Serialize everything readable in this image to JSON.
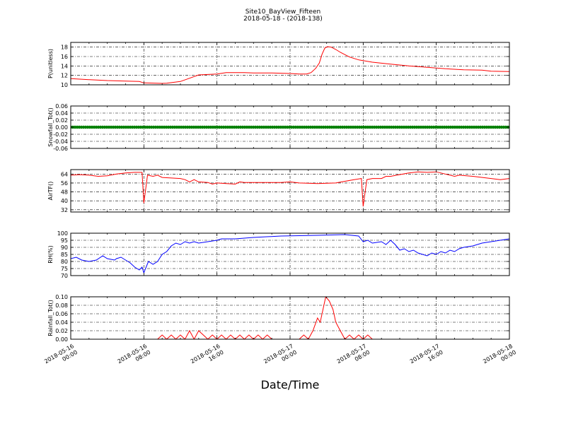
{
  "figure": {
    "title_line1": "Site10_BayView_Fifteen",
    "title_line2": "2018-05-18 - (2018-138)",
    "xlabel": "Date/Time",
    "x_ticks": [
      {
        "line1": "2018-05-16",
        "line2": "00:00"
      },
      {
        "line1": "2018-05-16",
        "line2": "08:00"
      },
      {
        "line1": "2018-05-16",
        "line2": "16:00"
      },
      {
        "line1": "2018-05-17",
        "line2": "00:00"
      },
      {
        "line1": "2018-05-17",
        "line2": "08:00"
      },
      {
        "line1": "2018-05-17",
        "line2": "16:00"
      },
      {
        "line1": "2018-05-18",
        "line2": "00:00"
      }
    ]
  },
  "chart_data": [
    {
      "type": "line",
      "ylabel": "P(unitless)",
      "ylim": [
        10,
        19
      ],
      "yticks": [
        10,
        12,
        14,
        16,
        18
      ],
      "grid": true,
      "series": [
        {
          "color": "#ff0000",
          "points": [
            [
              0,
              11.3
            ],
            [
              2,
              11.1
            ],
            [
              4,
              10.9
            ],
            [
              6,
              10.8
            ],
            [
              7.5,
              10.7
            ],
            [
              8,
              10.4
            ],
            [
              10,
              10.3
            ],
            [
              10.5,
              10.35
            ],
            [
              12,
              10.7
            ],
            [
              13,
              11.4
            ],
            [
              14,
              12.1
            ],
            [
              16,
              12.3
            ],
            [
              17,
              12.6
            ],
            [
              19,
              12.6
            ],
            [
              20,
              12.5
            ],
            [
              22,
              12.5
            ],
            [
              24,
              12.4
            ],
            [
              25,
              12.3
            ],
            [
              25.8,
              12.3
            ],
            [
              26.3,
              12.6
            ],
            [
              26.8,
              13.5
            ],
            [
              27.2,
              14.6
            ],
            [
              27.5,
              16.5
            ],
            [
              27.8,
              17.8
            ],
            [
              28.1,
              18.1
            ],
            [
              28.5,
              18
            ],
            [
              29,
              17.5
            ],
            [
              29.5,
              16.9
            ],
            [
              30.5,
              15.9
            ],
            [
              31.5,
              15.3
            ],
            [
              33,
              14.8
            ],
            [
              35,
              14.4
            ],
            [
              37,
              14
            ],
            [
              39,
              13.7
            ],
            [
              41,
              13.4
            ],
            [
              43,
              13.2
            ],
            [
              45,
              13.1
            ],
            [
              46,
              12.9
            ],
            [
              48,
              12.8
            ]
          ]
        }
      ]
    },
    {
      "type": "line",
      "ylabel": "Snowfall_Tot()",
      "ylim": [
        -0.06,
        0.06
      ],
      "yticks": [
        -0.06,
        -0.04,
        -0.02,
        0.0,
        0.02,
        0.04,
        0.06
      ],
      "grid": true,
      "series": [
        {
          "color": "#008000",
          "markers": true,
          "points": [
            [
              0,
              0
            ],
            [
              48,
              0
            ]
          ]
        }
      ]
    },
    {
      "type": "line",
      "ylabel": "AirTF()",
      "ylim": [
        30,
        68
      ],
      "yticks": [
        32,
        40,
        48,
        56,
        64
      ],
      "grid": true,
      "series": [
        {
          "color": "#ff0000",
          "points": [
            [
              0,
              63
            ],
            [
              1,
              63.5
            ],
            [
              2,
              63
            ],
            [
              3,
              62
            ],
            [
              4,
              62.5
            ],
            [
              5,
              64
            ],
            [
              6,
              65
            ],
            [
              7,
              65.5
            ],
            [
              7.8,
              65.5
            ],
            [
              8,
              38
            ],
            [
              8.4,
              63
            ],
            [
              9,
              62
            ],
            [
              9.5,
              63
            ],
            [
              10,
              61
            ],
            [
              12,
              60
            ],
            [
              12.5,
              59
            ],
            [
              13,
              57
            ],
            [
              13.5,
              59
            ],
            [
              14,
              57
            ],
            [
              15,
              56.5
            ],
            [
              15.5,
              55
            ],
            [
              16,
              56
            ],
            [
              17,
              55.5
            ],
            [
              18,
              55
            ],
            [
              18.5,
              57
            ],
            [
              19,
              56.5
            ],
            [
              21,
              56.5
            ],
            [
              23,
              56.5
            ],
            [
              24,
              57
            ],
            [
              25,
              56
            ],
            [
              27,
              55.5
            ],
            [
              29,
              56
            ],
            [
              31,
              59
            ],
            [
              31.8,
              60
            ],
            [
              32,
              35
            ],
            [
              32.4,
              59
            ],
            [
              33,
              60
            ],
            [
              34,
              60
            ],
            [
              34.5,
              62
            ],
            [
              35,
              62
            ],
            [
              36,
              63.5
            ],
            [
              37,
              65
            ],
            [
              38,
              66
            ],
            [
              39,
              65.5
            ],
            [
              40,
              66
            ],
            [
              41,
              64
            ],
            [
              42,
              62
            ],
            [
              42.5,
              63
            ],
            [
              44,
              62
            ],
            [
              46,
              60
            ],
            [
              47,
              59
            ],
            [
              48,
              60
            ]
          ]
        }
      ]
    },
    {
      "type": "line",
      "ylabel": "RH(%)",
      "ylim": [
        70,
        100
      ],
      "yticks": [
        70,
        75,
        80,
        85,
        90,
        95,
        100
      ],
      "grid": true,
      "series": [
        {
          "color": "#0000ff",
          "points": [
            [
              0,
              82
            ],
            [
              0.6,
              83
            ],
            [
              1.2,
              81
            ],
            [
              2,
              80
            ],
            [
              2.8,
              81
            ],
            [
              3.5,
              84
            ],
            [
              4,
              82
            ],
            [
              4.8,
              81
            ],
            [
              5,
              82
            ],
            [
              5.5,
              83
            ],
            [
              6,
              81
            ],
            [
              6.5,
              79
            ],
            [
              7,
              76
            ],
            [
              7.5,
              74
            ],
            [
              7.8,
              76
            ],
            [
              8,
              72
            ],
            [
              8.5,
              80
            ],
            [
              9,
              78
            ],
            [
              9.5,
              80
            ],
            [
              10,
              85
            ],
            [
              10.5,
              87
            ],
            [
              11,
              91
            ],
            [
              11.5,
              93
            ],
            [
              12,
              92
            ],
            [
              12.5,
              94
            ],
            [
              13,
              93
            ],
            [
              13.5,
              94
            ],
            [
              14,
              93
            ],
            [
              15,
              94
            ],
            [
              16,
              95
            ],
            [
              16.5,
              96
            ],
            [
              18,
              96
            ],
            [
              20,
              97
            ],
            [
              23,
              98
            ],
            [
              27,
              98.5
            ],
            [
              30,
              99
            ],
            [
              31.5,
              98
            ],
            [
              32,
              94
            ],
            [
              32.5,
              95
            ],
            [
              33,
              93
            ],
            [
              34,
              94
            ],
            [
              34.5,
              92
            ],
            [
              35,
              95
            ],
            [
              35.5,
              92
            ],
            [
              36,
              88
            ],
            [
              36.5,
              89
            ],
            [
              37,
              87
            ],
            [
              37.5,
              88
            ],
            [
              38,
              86
            ],
            [
              39,
              84
            ],
            [
              39.5,
              86
            ],
            [
              40,
              85
            ],
            [
              40.5,
              87
            ],
            [
              41,
              86
            ],
            [
              41.5,
              88
            ],
            [
              42,
              87
            ],
            [
              42.5,
              89
            ],
            [
              43,
              90
            ],
            [
              44,
              91
            ],
            [
              45,
              93
            ],
            [
              46,
              94
            ],
            [
              47,
              95
            ],
            [
              48,
              96
            ]
          ]
        }
      ]
    },
    {
      "type": "line",
      "ylabel": "Rainfall_Tot()",
      "ylim": [
        0,
        0.1
      ],
      "yticks": [
        0.0,
        0.02,
        0.04,
        0.06,
        0.08,
        0.1
      ],
      "grid": true,
      "series": [
        {
          "color": "#ff0000",
          "points": [
            [
              0,
              0
            ],
            [
              9.5,
              0
            ],
            [
              10,
              0.01
            ],
            [
              10.5,
              0
            ],
            [
              11,
              0.01
            ],
            [
              11.5,
              0
            ],
            [
              12,
              0.01
            ],
            [
              12.5,
              0
            ],
            [
              13,
              0.02
            ],
            [
              13.5,
              0
            ],
            [
              14,
              0.02
            ],
            [
              14.5,
              0.01
            ],
            [
              15,
              0
            ],
            [
              15.5,
              0.01
            ],
            [
              16,
              0
            ],
            [
              16.5,
              0.01
            ],
            [
              17,
              0
            ],
            [
              17.5,
              0.01
            ],
            [
              18,
              0
            ],
            [
              18.5,
              0.01
            ],
            [
              19,
              0
            ],
            [
              19.5,
              0.01
            ],
            [
              20,
              0
            ],
            [
              20.5,
              0.01
            ],
            [
              21,
              0
            ],
            [
              21.5,
              0.01
            ],
            [
              22,
              0
            ],
            [
              25,
              0
            ],
            [
              25.5,
              0.01
            ],
            [
              26,
              0
            ],
            [
              26.5,
              0.02
            ],
            [
              27,
              0.05
            ],
            [
              27.3,
              0.04
            ],
            [
              27.6,
              0.07
            ],
            [
              27.9,
              0.1
            ],
            [
              28.3,
              0.09
            ],
            [
              28.7,
              0.07
            ],
            [
              29,
              0.04
            ],
            [
              29.5,
              0.02
            ],
            [
              30,
              0
            ],
            [
              30.5,
              0.01
            ],
            [
              31,
              0
            ],
            [
              31.5,
              0.01
            ],
            [
              32,
              0
            ],
            [
              32.5,
              0.01
            ],
            [
              33,
              0
            ],
            [
              48,
              0
            ]
          ]
        }
      ]
    }
  ]
}
